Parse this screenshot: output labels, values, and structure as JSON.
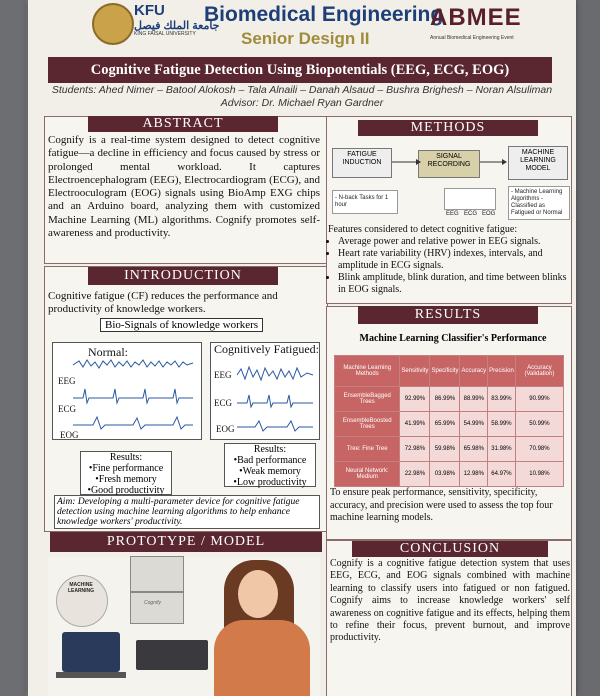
{
  "header": {
    "kfu": "KFU",
    "university_ar": "جامعة الملك فيصل",
    "university_en": "KING FAISAL UNIVERSITY",
    "title": "Biomedical Engineering",
    "subtitle": "Senior Design II",
    "event_logo": "ABMEE",
    "event_name": "Annual Biomedical Engineering Event"
  },
  "poster_title": "Cognitive Fatigue Detection Using Biopotentials (EEG, ECG, EOG)",
  "students": "Students: Ahed Nimer – Batool Alokosh – Tala Alnaili – Danah Alsaud – Bushra Brighesh – Noran Alsuliman",
  "advisor": "Advisor: Dr. Michael Ryan Gardner",
  "abstract": {
    "heading": "ABSTRACT",
    "text": "Cognify is a real-time system designed to detect cognitive fatigue—a decline in efficiency and focus caused by stress or prolonged mental workload. It captures Electroencephalogram (EEG), Electrocardiogram (ECG), and Electrooculogram (EOG) signals using BioAmp EXG chips and an Arduino board, analyzing them with customized Machine Learning (ML) algorithms. Cognify promotes self-awareness and productivity."
  },
  "introduction": {
    "heading": "INTRODUCTION",
    "text": "Cognitive fatigue (CF) reduces the performance and productivity of knowledge workers.",
    "bio_label": "Bio-Signals of knowledge workers",
    "normal_title": "Normal:",
    "fatigued_title": "Cognitively Fatigued:",
    "signal_labels": [
      "EEG",
      "ECG",
      "EOG"
    ],
    "results_normal": [
      "Results:",
      "•Fine performance",
      "•Fresh memory",
      "•Good productivity"
    ],
    "results_fatigued": [
      "Results:",
      "•Bad performance",
      "•Weak memory",
      "•Low productivity"
    ],
    "aim": "Aim: Developing a multi-parameter device for cognitive fatigue detection using machine learning algorithms to help enhance knowledge workers' productivity."
  },
  "prototype": {
    "heading": "PROTOTYPE / MODEL",
    "ml_label": "MACHINE LEARNING",
    "device_label": "Cognify"
  },
  "methods": {
    "heading": "METHODS",
    "flow": [
      "FATIGUE INDUCTION",
      "SIGNAL RECORDING",
      "MACHINE LEARNING MODEL"
    ],
    "flow_details": [
      "- N-back Tasks for 1 hour",
      "- Machine Learning Algorithms - Classified as Fatigued or Normal"
    ],
    "signal_icons": [
      "EEG",
      "ECG",
      "EOG"
    ],
    "features_intro": "Features considered to detect cognitive fatigue:",
    "features": [
      "Average power and relative power in EEG signals.",
      "Heart rate variability (HRV) indexes, intervals, and amplitude in ECG signals.",
      "Blink amplitude, blink duration, and time between blinks in EOG signals."
    ]
  },
  "results": {
    "heading": "RESULTS",
    "table_title": "Machine Learning Classifier's Performance",
    "columns": [
      "Machine Learning Methods",
      "Sensitivity",
      "Specificity",
      "Accuracy",
      "Precision",
      "Accuracy (Validation)"
    ],
    "rows": [
      [
        "EnsembleBagged Trees",
        "92.99%",
        "86.99%",
        "88.99%",
        "83.99%",
        "90.99%"
      ],
      [
        "EnsembleBoosted Trees",
        "41.99%",
        "65.99%",
        "54.99%",
        "58.99%",
        "50.99%"
      ],
      [
        "Tree: Fine Tree",
        "72.98%",
        "59.98%",
        "65.98%",
        "31.98%",
        "70.98%"
      ],
      [
        "Neural Network: Medium",
        "22.98%",
        "03.98%",
        "12.98%",
        "64.97%",
        "10.98%"
      ]
    ],
    "text": "To ensure peak performance, sensitivity, specificity, accuracy, and precision were used to assess the top four machine learning models."
  },
  "conclusion": {
    "heading": "CONCLUSION",
    "text": "Cognify is a cognitive fatigue detection system that uses EEG, ECG, and EOG signals combined with machine learning to classify users into fatigued or non fatigued. Cognify aims to increase knowledge workers' self awareness on cognitive fatigue and its effects, helping them to refine their focus, prevent burnout, and improve productivity."
  }
}
